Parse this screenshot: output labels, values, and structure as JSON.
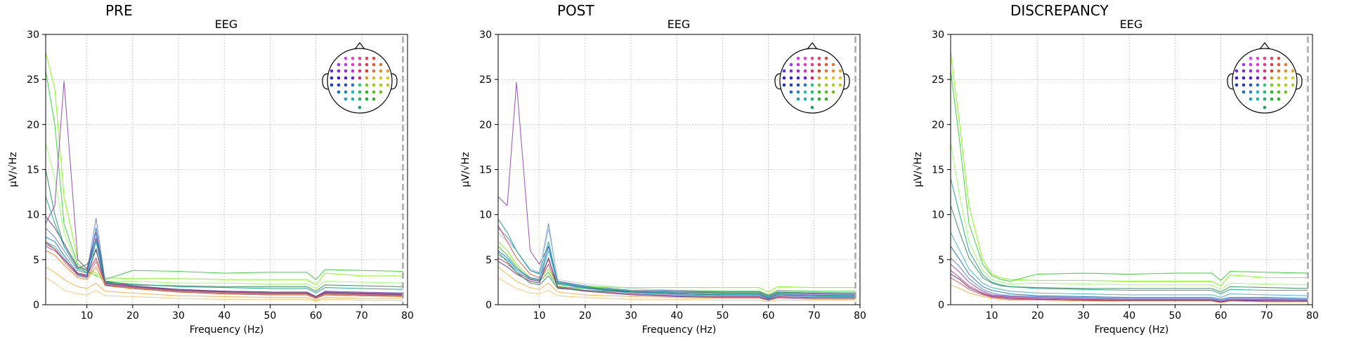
{
  "figure": {
    "panels": [
      {
        "title": "PRE",
        "subtitle": "EEG"
      },
      {
        "title": "POST",
        "subtitle": "EEG"
      },
      {
        "title": "DISCREPANCY",
        "subtitle": "EEG"
      }
    ]
  },
  "chart_data": [
    {
      "type": "line",
      "title": "PRE",
      "subtitle": "EEG",
      "xlabel": "Frequency (Hz)",
      "ylabel": "µV/√Hz",
      "xlim": [
        1,
        80
      ],
      "ylim": [
        0,
        30
      ],
      "xticks": [
        10,
        20,
        30,
        40,
        50,
        60,
        70,
        80
      ],
      "yticks": [
        0,
        5,
        10,
        15,
        20,
        25,
        30
      ],
      "grid": true,
      "vline_x": 79,
      "legend": "sensor-layout-topomap top-right",
      "x": [
        1,
        3,
        5,
        8,
        10,
        12,
        14,
        20,
        30,
        40,
        50,
        58,
        60,
        62,
        70,
        79
      ],
      "series": [
        {
          "color": "#7cfc00",
          "values": [
            28,
            24,
            12,
            5,
            4,
            3.5,
            3,
            2.9,
            2.9,
            2.8,
            2.8,
            2.8,
            2.2,
            3.5,
            3.2,
            3.2
          ]
        },
        {
          "color": "#33cc33",
          "values": [
            26,
            20,
            9,
            4.5,
            3.8,
            3.2,
            2.8,
            3.8,
            3.7,
            3.5,
            3.6,
            3.6,
            2.8,
            3.9,
            3.8,
            3.7
          ]
        },
        {
          "color": "#99ff66",
          "values": [
            18,
            14,
            8,
            4.2,
            3.6,
            3.3,
            2.6,
            2.6,
            2.4,
            2.4,
            2.3,
            2.3,
            1.8,
            2.6,
            2.5,
            2.4
          ]
        },
        {
          "color": "#2e8b57",
          "values": [
            15,
            10,
            6.5,
            4,
            4.5,
            6,
            2.6,
            2.2,
            2.1,
            2.0,
            2.0,
            2.0,
            1.5,
            2.2,
            2.1,
            2.0
          ]
        },
        {
          "color": "#8e44ad",
          "values": [
            9,
            11,
            24.8,
            5,
            4,
            8,
            2.4,
            2.0,
            1.6,
            1.5,
            1.4,
            1.4,
            0.9,
            1.5,
            1.4,
            1.3
          ]
        },
        {
          "color": "#5b7fcf",
          "values": [
            8.5,
            7.5,
            6,
            3.8,
            3.5,
            9.6,
            2.5,
            2.0,
            1.7,
            1.5,
            1.4,
            1.4,
            0.9,
            1.4,
            1.3,
            1.2
          ]
        },
        {
          "color": "#1a73c7",
          "values": [
            7.5,
            7,
            5.5,
            3.5,
            3.2,
            8.5,
            2.4,
            2.0,
            1.6,
            1.4,
            1.3,
            1.3,
            0.8,
            1.3,
            1.2,
            1.1
          ]
        },
        {
          "color": "#3cb4c8",
          "values": [
            7,
            6.5,
            5.2,
            3.3,
            3.0,
            7.0,
            2.3,
            1.9,
            1.5,
            1.3,
            1.2,
            1.2,
            0.8,
            1.2,
            1.1,
            1.0
          ]
        },
        {
          "color": "#5a2d82",
          "values": [
            6.8,
            6.2,
            5.0,
            3.4,
            3.1,
            6.2,
            2.2,
            1.8,
            1.4,
            1.2,
            1.1,
            1.1,
            0.7,
            1.1,
            1.0,
            1.0
          ]
        },
        {
          "color": "#c0306e",
          "values": [
            6.5,
            6,
            5.0,
            3.5,
            3.3,
            5.2,
            2.4,
            2.0,
            1.6,
            1.4,
            1.3,
            1.3,
            0.8,
            1.3,
            1.2,
            1.1
          ]
        },
        {
          "color": "#d6604d",
          "values": [
            7,
            6.2,
            4.8,
            3.2,
            3.0,
            4.8,
            2.3,
            1.9,
            1.5,
            1.3,
            1.2,
            1.2,
            0.8,
            1.2,
            1.1,
            1.0
          ]
        },
        {
          "color": "#e67e22",
          "values": [
            6,
            5.5,
            4.4,
            3.0,
            2.8,
            4.2,
            2.1,
            1.8,
            1.4,
            1.2,
            1.1,
            1.1,
            0.7,
            1.1,
            1.0,
            0.9
          ]
        },
        {
          "color": "#f5b041",
          "values": [
            4.2,
            3.6,
            2.8,
            2.0,
            1.8,
            2.4,
            1.5,
            1.3,
            1.0,
            0.9,
            0.8,
            0.8,
            0.5,
            0.8,
            0.7,
            0.7
          ]
        },
        {
          "color": "#f8c471",
          "values": [
            3.0,
            2.4,
            1.6,
            1.2,
            1.1,
            1.6,
            1.0,
            0.9,
            0.7,
            0.6,
            0.6,
            0.6,
            0.4,
            0.6,
            0.5,
            0.5
          ]
        },
        {
          "color": "#6c3483",
          "values": [
            9.8,
            8.5,
            6.8,
            4.2,
            3.8,
            7.4,
            2.6,
            2.1,
            1.7,
            1.5,
            1.4,
            1.4,
            0.9,
            1.4,
            1.3,
            1.2
          ]
        },
        {
          "color": "#17a589",
          "values": [
            12,
            9,
            6.5,
            4.0,
            3.6,
            7.2,
            2.5,
            2.3,
            2.0,
            1.9,
            1.8,
            1.8,
            1.3,
            1.9,
            1.8,
            1.7
          ]
        }
      ]
    },
    {
      "type": "line",
      "title": "POST",
      "subtitle": "EEG",
      "xlabel": "Frequency (Hz)",
      "ylabel": "µV/√Hz",
      "xlim": [
        1,
        80
      ],
      "ylim": [
        0,
        30
      ],
      "xticks": [
        10,
        20,
        30,
        40,
        50,
        60,
        70,
        80
      ],
      "yticks": [
        0,
        5,
        10,
        15,
        20,
        25,
        30
      ],
      "grid": true,
      "vline_x": 79,
      "legend": "sensor-layout-topomap top-right",
      "x": [
        1,
        3,
        5,
        8,
        10,
        12,
        14,
        20,
        30,
        40,
        50,
        58,
        60,
        62,
        70,
        79
      ],
      "series": [
        {
          "color": "#8e44ad",
          "values": [
            12,
            11,
            24.7,
            6,
            4.5,
            6.5,
            2.6,
            1.9,
            1.5,
            1.4,
            1.3,
            1.3,
            0.8,
            1.3,
            1.2,
            1.1
          ]
        },
        {
          "color": "#5b7fcf",
          "values": [
            8.5,
            7.5,
            6,
            3.8,
            3.5,
            9.0,
            2.6,
            2.1,
            1.6,
            1.5,
            1.4,
            1.4,
            0.9,
            1.4,
            1.3,
            1.2
          ]
        },
        {
          "color": "#a9cce3",
          "values": [
            8,
            7,
            6,
            4.0,
            3.6,
            8.4,
            2.8,
            2.3,
            1.8,
            1.6,
            1.5,
            1.5,
            1.0,
            1.5,
            1.4,
            1.3
          ]
        },
        {
          "color": "#e74c3c",
          "values": [
            8.8,
            7,
            5.2,
            3.4,
            3.0,
            5.0,
            2.3,
            1.8,
            1.4,
            1.2,
            1.1,
            1.1,
            0.7,
            1.1,
            1.0,
            1.0
          ]
        },
        {
          "color": "#7cfc00",
          "values": [
            7,
            6,
            4.5,
            3.0,
            2.8,
            4.0,
            2.2,
            2.0,
            1.9,
            1.9,
            1.9,
            1.9,
            1.4,
            2.0,
            1.9,
            1.9
          ]
        },
        {
          "color": "#33cc33",
          "values": [
            6.5,
            5.5,
            4.2,
            2.8,
            2.6,
            3.6,
            2.0,
            1.8,
            1.6,
            1.6,
            1.5,
            1.5,
            1.1,
            1.6,
            1.5,
            1.5
          ]
        },
        {
          "color": "#1a73c7",
          "values": [
            6,
            5.2,
            4.0,
            3.0,
            2.8,
            6.5,
            2.4,
            1.9,
            1.4,
            1.2,
            1.1,
            1.1,
            0.7,
            1.1,
            1.0,
            0.9
          ]
        },
        {
          "color": "#3cb4c8",
          "values": [
            5.5,
            5.0,
            3.8,
            2.9,
            2.7,
            6.0,
            2.3,
            1.8,
            1.3,
            1.1,
            1.0,
            1.0,
            0.6,
            1.0,
            0.9,
            0.9
          ]
        },
        {
          "color": "#c0306e",
          "values": [
            5.2,
            4.6,
            3.6,
            2.8,
            2.6,
            4.5,
            2.0,
            1.6,
            1.2,
            1.0,
            0.9,
            0.9,
            0.6,
            0.9,
            0.8,
            0.8
          ]
        },
        {
          "color": "#f5b041",
          "values": [
            4.2,
            3.4,
            2.6,
            1.9,
            1.7,
            2.4,
            1.4,
            1.1,
            0.9,
            0.8,
            0.7,
            0.7,
            0.5,
            0.7,
            0.6,
            0.6
          ]
        },
        {
          "color": "#5a2d82",
          "values": [
            4.8,
            4.2,
            3.4,
            2.6,
            2.4,
            5.2,
            1.9,
            1.5,
            1.1,
            0.9,
            0.8,
            0.8,
            0.5,
            0.8,
            0.7,
            0.7
          ]
        },
        {
          "color": "#2e8b57",
          "values": [
            5.8,
            4.8,
            3.6,
            2.4,
            2.2,
            3.2,
            1.8,
            1.6,
            1.4,
            1.4,
            1.4,
            1.4,
            1.0,
            1.4,
            1.3,
            1.3
          ]
        },
        {
          "color": "#f8c471",
          "values": [
            3.0,
            2.4,
            1.8,
            1.3,
            1.2,
            1.6,
            1.0,
            0.8,
            0.6,
            0.6,
            0.5,
            0.5,
            0.3,
            0.5,
            0.5,
            0.5
          ]
        },
        {
          "color": "#17a589",
          "values": [
            9.5,
            8.0,
            6.0,
            3.8,
            3.4,
            7.0,
            2.5,
            2.0,
            1.5,
            1.3,
            1.2,
            1.2,
            0.8,
            1.2,
            1.1,
            1.0
          ]
        }
      ]
    },
    {
      "type": "line",
      "title": "DISCREPANCY",
      "subtitle": "EEG",
      "xlabel": "Frequency (Hz)",
      "ylabel": "µV/√Hz",
      "xlim": [
        1,
        80
      ],
      "ylim": [
        0,
        30
      ],
      "xticks": [
        10,
        20,
        30,
        40,
        50,
        60,
        70,
        80
      ],
      "yticks": [
        0,
        5,
        10,
        15,
        20,
        25,
        30
      ],
      "grid": true,
      "vline_x": 79,
      "legend": "sensor-layout-topomap top-right",
      "x": [
        1,
        3,
        5,
        8,
        10,
        12,
        14,
        20,
        30,
        40,
        50,
        58,
        60,
        62,
        70,
        79
      ],
      "series": [
        {
          "color": "#7cfc00",
          "values": [
            28,
            20,
            11,
            5,
            3.4,
            3.0,
            2.8,
            2.7,
            2.7,
            2.6,
            2.6,
            2.6,
            2.1,
            3.3,
            3.0,
            3.0
          ]
        },
        {
          "color": "#33cc33",
          "values": [
            26,
            18,
            9,
            4.5,
            3.2,
            2.8,
            2.6,
            3.4,
            3.5,
            3.4,
            3.5,
            3.5,
            2.7,
            3.7,
            3.6,
            3.5
          ]
        },
        {
          "color": "#99ff66",
          "values": [
            18,
            12,
            7,
            3.8,
            2.8,
            2.5,
            2.3,
            2.4,
            2.3,
            2.2,
            2.2,
            2.2,
            1.7,
            2.4,
            2.3,
            2.2
          ]
        },
        {
          "color": "#2e8b57",
          "values": [
            11,
            8,
            5.2,
            3.0,
            2.4,
            2.1,
            2.0,
            1.9,
            1.8,
            1.8,
            1.8,
            1.8,
            1.4,
            2.0,
            1.9,
            1.8
          ]
        },
        {
          "color": "#3cb4c8",
          "values": [
            8,
            6,
            4.0,
            2.4,
            1.9,
            1.7,
            1.5,
            1.3,
            1.2,
            1.1,
            1.1,
            1.1,
            0.8,
            1.2,
            1.1,
            1.0
          ]
        },
        {
          "color": "#1a73c7",
          "values": [
            6.5,
            5,
            3.4,
            2.0,
            1.6,
            1.4,
            1.2,
            1.0,
            0.9,
            0.8,
            0.8,
            0.8,
            0.6,
            0.8,
            0.8,
            0.7
          ]
        },
        {
          "color": "#5b7fcf",
          "values": [
            5.2,
            4.2,
            2.9,
            1.7,
            1.3,
            1.1,
            1.0,
            0.9,
            0.8,
            0.7,
            0.7,
            0.7,
            0.5,
            0.7,
            0.7,
            0.6
          ]
        },
        {
          "color": "#8e44ad",
          "values": [
            4.5,
            3.6,
            2.5,
            1.5,
            1.1,
            1.0,
            0.9,
            0.8,
            0.7,
            0.6,
            0.6,
            0.6,
            0.4,
            0.6,
            0.6,
            0.5
          ]
        },
        {
          "color": "#c0306e",
          "values": [
            3.8,
            3.0,
            2.1,
            1.3,
            1.0,
            0.9,
            0.8,
            0.7,
            0.6,
            0.5,
            0.5,
            0.5,
            0.3,
            0.5,
            0.5,
            0.5
          ]
        },
        {
          "color": "#e74c3c",
          "values": [
            3.0,
            2.4,
            1.7,
            1.1,
            0.8,
            0.7,
            0.6,
            0.6,
            0.5,
            0.4,
            0.4,
            0.4,
            0.3,
            0.4,
            0.4,
            0.4
          ]
        },
        {
          "color": "#f5b041",
          "values": [
            2.2,
            1.8,
            1.3,
            0.9,
            0.7,
            0.6,
            0.5,
            0.5,
            0.4,
            0.4,
            0.4,
            0.4,
            0.2,
            0.4,
            0.3,
            0.3
          ]
        },
        {
          "color": "#5a2d82",
          "values": [
            3.4,
            2.8,
            1.9,
            1.2,
            0.9,
            0.8,
            0.7,
            0.6,
            0.5,
            0.5,
            0.5,
            0.5,
            0.3,
            0.5,
            0.4,
            0.4
          ]
        },
        {
          "color": "#17a589",
          "values": [
            14,
            10,
            6.0,
            3.3,
            2.5,
            2.2,
            2.0,
            1.8,
            1.7,
            1.6,
            1.6,
            1.6,
            1.2,
            1.7,
            1.6,
            1.6
          ]
        }
      ]
    }
  ]
}
